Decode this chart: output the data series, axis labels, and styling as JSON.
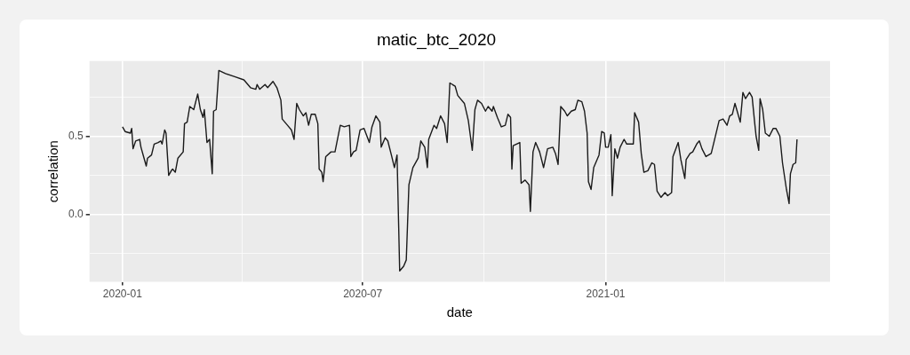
{
  "chart_data": {
    "type": "line",
    "title": "matic_btc_2020",
    "xlabel": "date",
    "ylabel": "correlation",
    "x": [
      "2020-01-01",
      "2020-01-03",
      "2020-01-07",
      "2020-01-08",
      "2020-01-09",
      "2020-01-11",
      "2020-01-14",
      "2020-01-15",
      "2020-01-17",
      "2020-01-19",
      "2020-01-20",
      "2020-01-23",
      "2020-01-25",
      "2020-01-28",
      "2020-01-30",
      "2020-01-31",
      "2020-02-02",
      "2020-02-03",
      "2020-02-05",
      "2020-02-07",
      "2020-02-08",
      "2020-02-10",
      "2020-02-12",
      "2020-02-16",
      "2020-02-17",
      "2020-02-19",
      "2020-02-21",
      "2020-02-24",
      "2020-02-27",
      "2020-02-29",
      "2020-03-02",
      "2020-03-03",
      "2020-03-05",
      "2020-03-07",
      "2020-03-09",
      "2020-03-10",
      "2020-03-12",
      "2020-03-14",
      "2020-03-19",
      "2020-03-26",
      "2020-04-02",
      "2020-04-07",
      "2020-04-11",
      "2020-04-12",
      "2020-04-14",
      "2020-04-18",
      "2020-04-20",
      "2020-04-24",
      "2020-04-27",
      "2020-04-30",
      "2020-05-01",
      "2020-05-05",
      "2020-05-08",
      "2020-05-10",
      "2020-05-12",
      "2020-05-14",
      "2020-05-17",
      "2020-05-19",
      "2020-05-21",
      "2020-05-23",
      "2020-05-26",
      "2020-05-28",
      "2020-05-29",
      "2020-05-31",
      "2020-06-01",
      "2020-06-03",
      "2020-06-07",
      "2020-06-10",
      "2020-06-14",
      "2020-06-17",
      "2020-06-21",
      "2020-06-22",
      "2020-06-24",
      "2020-06-26",
      "2020-06-29",
      "2020-07-02",
      "2020-07-06",
      "2020-07-08",
      "2020-07-11",
      "2020-07-14",
      "2020-07-15",
      "2020-07-18",
      "2020-07-20",
      "2020-07-23",
      "2020-07-25",
      "2020-07-27",
      "2020-07-29",
      "2020-08-01",
      "2020-08-03",
      "2020-08-05",
      "2020-08-08",
      "2020-08-12",
      "2020-08-14",
      "2020-08-17",
      "2020-08-19",
      "2020-08-20",
      "2020-08-24",
      "2020-08-26",
      "2020-08-29",
      "2020-09-01",
      "2020-09-03",
      "2020-09-05",
      "2020-09-09",
      "2020-09-11",
      "2020-09-16",
      "2020-09-19",
      "2020-09-22",
      "2020-09-24",
      "2020-09-26",
      "2020-09-29",
      "2020-10-02",
      "2020-10-04",
      "2020-10-07",
      "2020-10-08",
      "2020-10-11",
      "2020-10-14",
      "2020-10-17",
      "2020-10-19",
      "2020-10-21",
      "2020-10-22",
      "2020-10-23",
      "2020-10-28",
      "2020-10-29",
      "2020-11-01",
      "2020-11-04",
      "2020-11-05",
      "2020-11-07",
      "2020-11-09",
      "2020-11-12",
      "2020-11-15",
      "2020-11-18",
      "2020-11-22",
      "2020-11-24",
      "2020-11-26",
      "2020-11-28",
      "2020-12-01",
      "2020-12-03",
      "2020-12-06",
      "2020-12-09",
      "2020-12-11",
      "2020-12-14",
      "2020-12-16",
      "2020-12-18",
      "2020-12-19",
      "2020-12-21",
      "2020-12-23",
      "2020-12-27",
      "2020-12-29",
      "2020-12-31",
      "2021-01-01",
      "2021-01-03",
      "2021-01-05",
      "2021-01-06",
      "2021-01-08",
      "2021-01-10",
      "2021-01-12",
      "2021-01-15",
      "2021-01-17",
      "2021-01-22",
      "2021-01-23",
      "2021-01-26",
      "2021-01-28",
      "2021-01-30",
      "2021-02-02",
      "2021-02-05",
      "2021-02-07",
      "2021-02-09",
      "2021-02-12",
      "2021-02-15",
      "2021-02-17",
      "2021-02-20",
      "2021-02-21",
      "2021-02-25",
      "2021-02-27",
      "2021-03-02",
      "2021-03-03",
      "2021-03-06",
      "2021-03-08",
      "2021-03-11",
      "2021-03-13",
      "2021-03-15",
      "2021-03-18",
      "2021-03-22",
      "2021-03-24",
      "2021-03-28",
      "2021-03-31",
      "2021-04-03",
      "2021-04-05",
      "2021-04-07",
      "2021-04-09",
      "2021-04-13",
      "2021-04-15",
      "2021-04-17",
      "2021-04-20",
      "2021-04-22",
      "2021-04-24",
      "2021-04-25",
      "2021-04-27",
      "2021-04-28",
      "2021-04-30",
      "2021-05-02",
      "2021-05-05",
      "2021-05-08",
      "2021-05-10",
      "2021-05-13",
      "2021-05-15",
      "2021-05-18",
      "2021-05-20",
      "2021-05-21",
      "2021-05-23",
      "2021-05-25",
      "2021-05-26"
    ],
    "series": [
      {
        "color": "#1a1a1a",
        "values": [
          0.56,
          0.53,
          0.52,
          0.55,
          0.42,
          0.47,
          0.48,
          0.43,
          0.37,
          0.31,
          0.36,
          0.38,
          0.45,
          0.46,
          0.47,
          0.45,
          0.54,
          0.52,
          0.25,
          0.28,
          0.29,
          0.27,
          0.36,
          0.4,
          0.58,
          0.59,
          0.69,
          0.67,
          0.77,
          0.67,
          0.62,
          0.67,
          0.46,
          0.48,
          0.26,
          0.66,
          0.67,
          0.92,
          0.9,
          0.88,
          0.86,
          0.81,
          0.8,
          0.83,
          0.8,
          0.83,
          0.81,
          0.85,
          0.81,
          0.73,
          0.61,
          0.57,
          0.54,
          0.48,
          0.71,
          0.67,
          0.63,
          0.65,
          0.57,
          0.64,
          0.64,
          0.58,
          0.29,
          0.27,
          0.21,
          0.37,
          0.4,
          0.4,
          0.57,
          0.56,
          0.57,
          0.37,
          0.4,
          0.41,
          0.54,
          0.55,
          0.46,
          0.56,
          0.63,
          0.59,
          0.43,
          0.49,
          0.47,
          0.37,
          0.3,
          0.38,
          -0.36,
          -0.33,
          -0.29,
          0.19,
          0.3,
          0.36,
          0.47,
          0.43,
          0.3,
          0.48,
          0.57,
          0.55,
          0.63,
          0.58,
          0.46,
          0.84,
          0.82,
          0.76,
          0.71,
          0.6,
          0.41,
          0.67,
          0.73,
          0.71,
          0.66,
          0.69,
          0.66,
          0.69,
          0.62,
          0.56,
          0.57,
          0.64,
          0.62,
          0.29,
          0.44,
          0.46,
          0.2,
          0.22,
          0.19,
          0.02,
          0.4,
          0.46,
          0.4,
          0.3,
          0.42,
          0.43,
          0.39,
          0.32,
          0.69,
          0.66,
          0.63,
          0.66,
          0.67,
          0.73,
          0.72,
          0.66,
          0.52,
          0.21,
          0.16,
          0.3,
          0.38,
          0.53,
          0.52,
          0.43,
          0.43,
          0.51,
          0.12,
          0.42,
          0.36,
          0.43,
          0.48,
          0.45,
          0.45,
          0.65,
          0.59,
          0.39,
          0.27,
          0.28,
          0.33,
          0.32,
          0.15,
          0.11,
          0.14,
          0.12,
          0.14,
          0.37,
          0.46,
          0.35,
          0.23,
          0.35,
          0.39,
          0.4,
          0.45,
          0.47,
          0.42,
          0.37,
          0.39,
          0.46,
          0.6,
          0.61,
          0.57,
          0.63,
          0.64,
          0.71,
          0.59,
          0.78,
          0.74,
          0.78,
          0.75,
          0.58,
          0.5,
          0.41,
          0.74,
          0.67,
          0.52,
          0.5,
          0.55,
          0.55,
          0.5,
          0.33,
          0.16,
          0.07,
          0.26,
          0.32,
          0.33,
          0.48
        ]
      }
    ],
    "xlim": [
      "2019-12-07",
      "2021-06-20"
    ],
    "xticks": [
      {
        "value": "2020-01",
        "label": "2020-01"
      },
      {
        "value": "2020-04",
        "label": null
      },
      {
        "value": "2020-07",
        "label": "2020-07"
      },
      {
        "value": "2020-10",
        "label": null
      },
      {
        "value": "2021-01",
        "label": "2021-01"
      },
      {
        "value": "2021-04",
        "label": null
      }
    ],
    "ylim": [
      -0.43,
      0.98
    ],
    "yticks": [
      {
        "value": -0.25,
        "label": null
      },
      {
        "value": 0,
        "label": "0.0"
      },
      {
        "value": 0.25,
        "label": null
      },
      {
        "value": 0.5,
        "label": "0.5"
      },
      {
        "value": 0.75,
        "label": null
      }
    ],
    "grid": true,
    "legend": false,
    "marker": "none",
    "line_style": "solid"
  }
}
